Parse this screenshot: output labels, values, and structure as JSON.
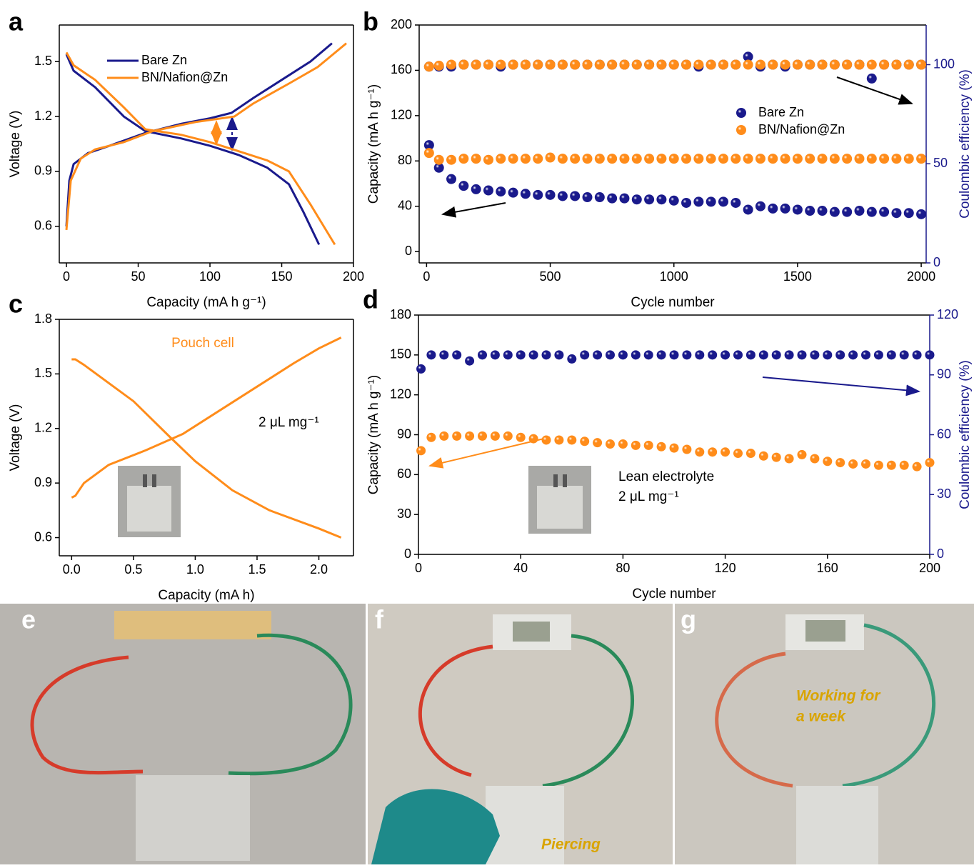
{
  "chart_data": [
    {
      "type": "line",
      "panel": "a",
      "xlabel": "Capacity (mA h g⁻¹)",
      "ylabel": "Voltage (V)",
      "xlim": [
        -5,
        200
      ],
      "xticks": [
        0,
        50,
        100,
        150,
        200
      ],
      "ylim": [
        0.4,
        1.7
      ],
      "yticks": [
        0.6,
        0.9,
        1.2,
        1.5
      ],
      "legend": "upper left",
      "series": [
        {
          "name": "Bare Zn",
          "color": "#1a1a8c",
          "x": [
            0,
            5,
            20,
            40,
            55,
            80,
            100,
            120,
            140,
            155,
            165,
            176,
            null,
            0,
            2,
            5,
            15,
            30,
            55,
            80,
            100,
            115,
            130,
            150,
            170,
            185
          ],
          "values": [
            1.54,
            1.45,
            1.36,
            1.2,
            1.12,
            1.08,
            1.04,
            0.99,
            0.92,
            0.83,
            0.68,
            0.5,
            null,
            0.6,
            0.85,
            0.94,
            1.0,
            1.04,
            1.11,
            1.16,
            1.19,
            1.22,
            1.3,
            1.4,
            1.5,
            1.6
          ]
        },
        {
          "name": "BN/Nafion@Zn",
          "color": "#ff8c1a",
          "x": [
            0,
            5,
            20,
            40,
            55,
            80,
            100,
            120,
            140,
            155,
            170,
            187,
            null,
            0,
            3,
            10,
            20,
            40,
            60,
            90,
            117,
            130,
            155,
            175,
            195
          ],
          "values": [
            1.55,
            1.48,
            1.4,
            1.25,
            1.13,
            1.1,
            1.06,
            1.01,
            0.96,
            0.9,
            0.72,
            0.5,
            null,
            0.58,
            0.85,
            0.97,
            1.02,
            1.06,
            1.12,
            1.17,
            1.2,
            1.27,
            1.38,
            1.47,
            1.6
          ]
        }
      ]
    },
    {
      "type": "scatter",
      "panel": "b",
      "xlabel": "Cycle number",
      "ylabel": "Capacity (mA h g⁻¹)",
      "y2label": "Coulombic efficiency (%)",
      "y2color": "#1a1a8c",
      "xlim": [
        -30,
        2020
      ],
      "xticks": [
        0,
        500,
        1000,
        1500,
        2000
      ],
      "ylim": [
        -10,
        200
      ],
      "yticks": [
        0,
        40,
        80,
        120,
        160,
        200
      ],
      "y2lim": [
        0,
        120
      ],
      "y2ticks": [
        0,
        50,
        100
      ],
      "legend": "right",
      "x": [
        10,
        50,
        100,
        150,
        200,
        250,
        300,
        350,
        400,
        450,
        500,
        550,
        600,
        650,
        700,
        750,
        800,
        850,
        900,
        950,
        1000,
        1050,
        1100,
        1150,
        1200,
        1250,
        1300,
        1350,
        1400,
        1450,
        1500,
        1550,
        1600,
        1650,
        1700,
        1750,
        1800,
        1850,
        1900,
        1950,
        2000
      ],
      "series": [
        {
          "name": "Bare Zn",
          "color": "#1a1a8c",
          "values": [
            94,
            74,
            64,
            58,
            55,
            54,
            53,
            52,
            51,
            50,
            50,
            49,
            49,
            48,
            48,
            47,
            47,
            46,
            46,
            46,
            45,
            43,
            44,
            44,
            44,
            43,
            37,
            40,
            38,
            38,
            37,
            36,
            36,
            35,
            35,
            36,
            35,
            35,
            34,
            34,
            33
          ]
        },
        {
          "name": "BN/Nafion@Zn",
          "color": "#ff8c1a",
          "values": [
            87,
            81,
            81,
            82,
            82,
            81,
            82,
            82,
            82,
            82,
            83,
            82,
            82,
            82,
            82,
            82,
            82,
            82,
            82,
            82,
            82,
            82,
            82,
            82,
            82,
            82,
            82,
            82,
            82,
            82,
            82,
            82,
            82,
            82,
            82,
            82,
            82,
            82,
            82,
            82,
            82
          ]
        },
        {
          "color": "#1a1a8c",
          "axis": "y2",
          "values": [
            99,
            99,
            99,
            100,
            100,
            100,
            99,
            100,
            100,
            100,
            100,
            100,
            100,
            100,
            100,
            100,
            100,
            100,
            100,
            100,
            100,
            100,
            99,
            100,
            100,
            100,
            104,
            99,
            100,
            99,
            100,
            100,
            100,
            100,
            100,
            100,
            93,
            100,
            100,
            100,
            100
          ]
        },
        {
          "color": "#ff8c1a",
          "axis": "y2",
          "values": [
            99,
            99.5,
            100,
            100,
            100,
            100,
            100,
            100,
            100,
            100,
            100,
            100,
            100,
            100,
            100,
            100,
            100,
            100,
            100,
            100,
            100,
            100,
            100,
            100,
            100,
            100,
            100,
            100,
            100,
            100,
            100,
            100,
            100,
            100,
            100,
            100,
            100,
            100,
            100,
            100,
            100
          ]
        }
      ]
    },
    {
      "type": "line",
      "panel": "c",
      "xlabel": "Capacity (mA h)",
      "ylabel": "Voltage (V)",
      "xlim": [
        -0.1,
        2.28
      ],
      "xticks": [
        {
          "value": 0,
          "label": "0.0"
        },
        0.5,
        {
          "value": 1,
          "label": "1.0"
        },
        1.5,
        {
          "value": 2,
          "label": "2.0"
        }
      ],
      "ylim": [
        0.5,
        1.8
      ],
      "yticks": [
        0.6,
        0.9,
        1.2,
        1.5,
        1.8
      ],
      "annotations": [
        "Pouch cell",
        "2 μL mg⁻¹"
      ],
      "series": [
        {
          "color": "#ff8c1a",
          "x": [
            0,
            0.03,
            0.1,
            0.5,
            0.8,
            1.0,
            1.3,
            1.6,
            2.0,
            2.18,
            null,
            0,
            0.03,
            0.1,
            0.3,
            0.6,
            0.9,
            1.2,
            1.5,
            1.8,
            2.0,
            2.18
          ],
          "values": [
            1.58,
            1.58,
            1.55,
            1.35,
            1.15,
            1.02,
            0.86,
            0.75,
            0.65,
            0.6,
            null,
            0.82,
            0.83,
            0.9,
            1.0,
            1.08,
            1.17,
            1.3,
            1.43,
            1.56,
            1.64,
            1.7
          ]
        }
      ]
    },
    {
      "type": "scatter",
      "panel": "d",
      "xlabel": "Cycle number",
      "ylabel": "Capacity (mA h g⁻¹)",
      "y2label": "Coulombic efficiency (%)",
      "y2color": "#1a1a8c",
      "xlim": [
        0,
        200
      ],
      "xticks": [
        0,
        40,
        80,
        120,
        160,
        200
      ],
      "ylim": [
        0,
        180
      ],
      "yticks": [
        0,
        30,
        60,
        90,
        120,
        150,
        180
      ],
      "y2lim": [
        0,
        120
      ],
      "y2ticks": [
        0,
        30,
        60,
        90,
        120
      ],
      "annotations": [
        "Lean electrolyte",
        "2 μL mg⁻¹"
      ],
      "x": [
        1,
        5,
        10,
        15,
        20,
        25,
        30,
        35,
        40,
        45,
        50,
        55,
        60,
        65,
        70,
        75,
        80,
        85,
        90,
        95,
        100,
        105,
        110,
        115,
        120,
        125,
        130,
        135,
        140,
        145,
        150,
        155,
        160,
        165,
        170,
        175,
        180,
        185,
        190,
        195,
        200
      ],
      "series": [
        {
          "color": "#1a1a8c",
          "axis": "y2",
          "values": [
            93,
            100,
            100,
            100,
            97,
            100,
            100,
            100,
            100,
            100,
            100,
            100,
            98,
            100,
            100,
            100,
            100,
            100,
            100,
            100,
            100,
            100,
            100,
            100,
            100,
            100,
            100,
            100,
            100,
            100,
            100,
            100,
            100,
            100,
            100,
            100,
            100,
            100,
            100,
            100,
            100
          ]
        },
        {
          "color": "#ff8c1a",
          "values": [
            78,
            88,
            89,
            89,
            89,
            89,
            89,
            89,
            88,
            87,
            86,
            86,
            86,
            85,
            84,
            83,
            83,
            82,
            82,
            81,
            80,
            79,
            77,
            77,
            77,
            76,
            76,
            74,
            73,
            72,
            75,
            72,
            70,
            69,
            68,
            68,
            67,
            67,
            67,
            66,
            69
          ]
        }
      ]
    }
  ],
  "photos": [
    {
      "panel": "e"
    },
    {
      "panel": "f",
      "caption": [
        "Piercing"
      ]
    },
    {
      "panel": "g",
      "caption": [
        "Working for",
        "a week"
      ]
    }
  ]
}
